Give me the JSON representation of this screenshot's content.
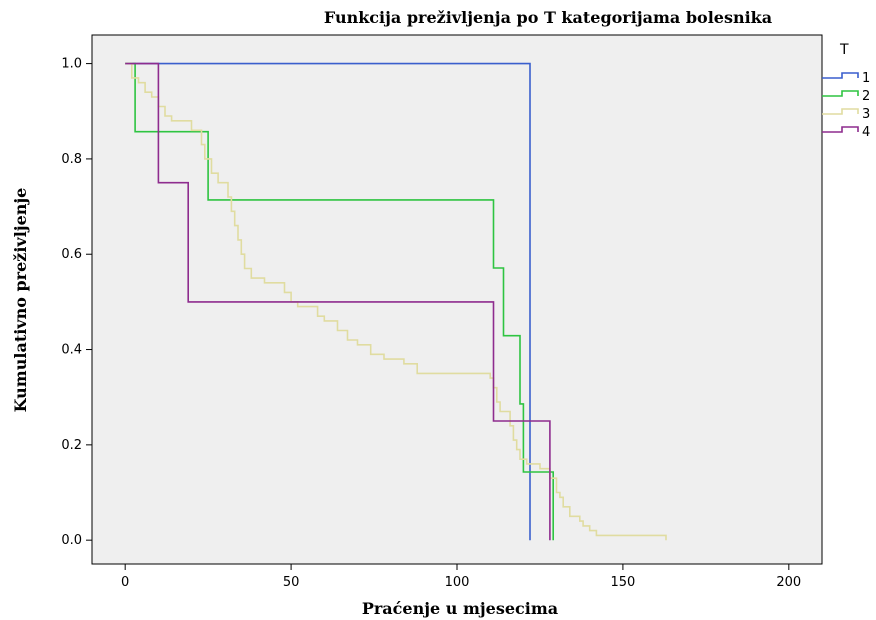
{
  "chart_data": {
    "type": "line",
    "title": "Funkcija preživljenja po T kategorijama bolesnika",
    "xlabel": "Praćenje u mjesecima",
    "ylabel": "Kumulativno preživljenje",
    "xlim": [
      -10,
      210
    ],
    "ylim": [
      -0.05,
      1.06
    ],
    "x_ticks": [
      0,
      50,
      100,
      150,
      200
    ],
    "y_ticks": [
      0.0,
      0.2,
      0.4,
      0.6,
      0.8,
      1.0
    ],
    "x_tick_labels": [
      "0",
      "50",
      "100",
      "150",
      "200"
    ],
    "y_tick_labels": [
      "0.0",
      "0.2",
      "0.4",
      "0.6",
      "0.8",
      "1.0"
    ],
    "grid": false,
    "legend_title": "T",
    "legend_position": "top-right",
    "series": [
      {
        "name": "1",
        "color": "#3a5fcd",
        "points": [
          [
            0,
            1.0
          ],
          [
            122,
            1.0
          ],
          [
            122,
            0.0
          ]
        ]
      },
      {
        "name": "2",
        "color": "#2ec441",
        "points": [
          [
            0,
            1.0
          ],
          [
            3,
            1.0
          ],
          [
            3,
            0.857
          ],
          [
            25,
            0.857
          ],
          [
            25,
            0.714
          ],
          [
            111,
            0.714
          ],
          [
            111,
            0.571
          ],
          [
            114,
            0.571
          ],
          [
            114,
            0.429
          ],
          [
            119,
            0.429
          ],
          [
            119,
            0.286
          ],
          [
            120,
            0.286
          ],
          [
            120,
            0.143
          ],
          [
            129,
            0.143
          ],
          [
            129,
            0.0
          ]
        ]
      },
      {
        "name": "3",
        "color": "#e0dca0",
        "points": [
          [
            0,
            1.0
          ],
          [
            2,
            1.0
          ],
          [
            2,
            0.97
          ],
          [
            4,
            0.97
          ],
          [
            4,
            0.96
          ],
          [
            6,
            0.96
          ],
          [
            6,
            0.94
          ],
          [
            8,
            0.94
          ],
          [
            8,
            0.93
          ],
          [
            10,
            0.93
          ],
          [
            10,
            0.91
          ],
          [
            12,
            0.91
          ],
          [
            12,
            0.89
          ],
          [
            14,
            0.89
          ],
          [
            14,
            0.88
          ],
          [
            20,
            0.88
          ],
          [
            20,
            0.86
          ],
          [
            23,
            0.86
          ],
          [
            23,
            0.83
          ],
          [
            24,
            0.83
          ],
          [
            24,
            0.8
          ],
          [
            26,
            0.8
          ],
          [
            26,
            0.77
          ],
          [
            28,
            0.77
          ],
          [
            28,
            0.75
          ],
          [
            31,
            0.75
          ],
          [
            31,
            0.72
          ],
          [
            32,
            0.72
          ],
          [
            32,
            0.69
          ],
          [
            33,
            0.69
          ],
          [
            33,
            0.66
          ],
          [
            34,
            0.66
          ],
          [
            34,
            0.63
          ],
          [
            35,
            0.63
          ],
          [
            35,
            0.6
          ],
          [
            36,
            0.6
          ],
          [
            36,
            0.57
          ],
          [
            38,
            0.57
          ],
          [
            38,
            0.55
          ],
          [
            42,
            0.55
          ],
          [
            42,
            0.54
          ],
          [
            48,
            0.54
          ],
          [
            48,
            0.52
          ],
          [
            50,
            0.52
          ],
          [
            50,
            0.5
          ],
          [
            52,
            0.5
          ],
          [
            52,
            0.49
          ],
          [
            58,
            0.49
          ],
          [
            58,
            0.47
          ],
          [
            60,
            0.47
          ],
          [
            60,
            0.46
          ],
          [
            64,
            0.46
          ],
          [
            64,
            0.44
          ],
          [
            67,
            0.44
          ],
          [
            67,
            0.42
          ],
          [
            70,
            0.42
          ],
          [
            70,
            0.41
          ],
          [
            74,
            0.41
          ],
          [
            74,
            0.39
          ],
          [
            78,
            0.39
          ],
          [
            78,
            0.38
          ],
          [
            84,
            0.38
          ],
          [
            84,
            0.37
          ],
          [
            88,
            0.37
          ],
          [
            88,
            0.35
          ],
          [
            110,
            0.35
          ],
          [
            110,
            0.34
          ],
          [
            111,
            0.34
          ],
          [
            111,
            0.32
          ],
          [
            112,
            0.32
          ],
          [
            112,
            0.29
          ],
          [
            113,
            0.29
          ],
          [
            113,
            0.27
          ],
          [
            116,
            0.27
          ],
          [
            116,
            0.24
          ],
          [
            117,
            0.24
          ],
          [
            117,
            0.21
          ],
          [
            118,
            0.21
          ],
          [
            118,
            0.19
          ],
          [
            119,
            0.19
          ],
          [
            119,
            0.17
          ],
          [
            121,
            0.17
          ],
          [
            121,
            0.16
          ],
          [
            125,
            0.16
          ],
          [
            125,
            0.15
          ],
          [
            128,
            0.15
          ],
          [
            128,
            0.13
          ],
          [
            130,
            0.13
          ],
          [
            130,
            0.1
          ],
          [
            131,
            0.1
          ],
          [
            131,
            0.09
          ],
          [
            132,
            0.09
          ],
          [
            132,
            0.07
          ],
          [
            134,
            0.07
          ],
          [
            134,
            0.05
          ],
          [
            137,
            0.05
          ],
          [
            137,
            0.04
          ],
          [
            138,
            0.04
          ],
          [
            138,
            0.03
          ],
          [
            140,
            0.03
          ],
          [
            140,
            0.02
          ],
          [
            142,
            0.02
          ],
          [
            142,
            0.01
          ],
          [
            163,
            0.01
          ],
          [
            163,
            0.0
          ]
        ]
      },
      {
        "name": "4",
        "color": "#8e2c8e",
        "points": [
          [
            0,
            1.0
          ],
          [
            10,
            1.0
          ],
          [
            10,
            0.75
          ],
          [
            19,
            0.75
          ],
          [
            19,
            0.5
          ],
          [
            111,
            0.5
          ],
          [
            111,
            0.25
          ],
          [
            128,
            0.25
          ],
          [
            128,
            0.0
          ]
        ]
      }
    ]
  },
  "colors": {
    "plot_background": "#efefef",
    "axis": "#000000"
  }
}
